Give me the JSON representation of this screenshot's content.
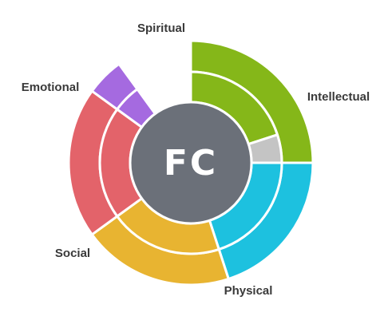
{
  "chart_data": {
    "type": "sunburst",
    "center_label": "FC",
    "center_color": "#6b7079",
    "categories": [
      {
        "name": "Intellectual",
        "outer": 25,
        "inner": 20,
        "color": "#85b719"
      },
      {
        "name": "Intellectual (unfilled)",
        "outer": 0,
        "inner": 5,
        "color": "#c4c4c4"
      },
      {
        "name": "Physical",
        "outer": 20,
        "inner": 20,
        "color": "#1dc1df"
      },
      {
        "name": "Social",
        "outer": 20,
        "inner": 20,
        "color": "#e8b431"
      },
      {
        "name": "Emotional",
        "outer": 20,
        "inner": 20,
        "color": "#e3636a"
      },
      {
        "name": "Spiritual",
        "outer": 5,
        "inner": 5,
        "color": "#a56ae0"
      },
      {
        "name": "",
        "outer": 10,
        "inner": 10,
        "color": "#ffffff"
      }
    ],
    "labels": [
      "Spiritual",
      "Emotional",
      "Intellectual",
      "Social",
      "Physical"
    ]
  }
}
